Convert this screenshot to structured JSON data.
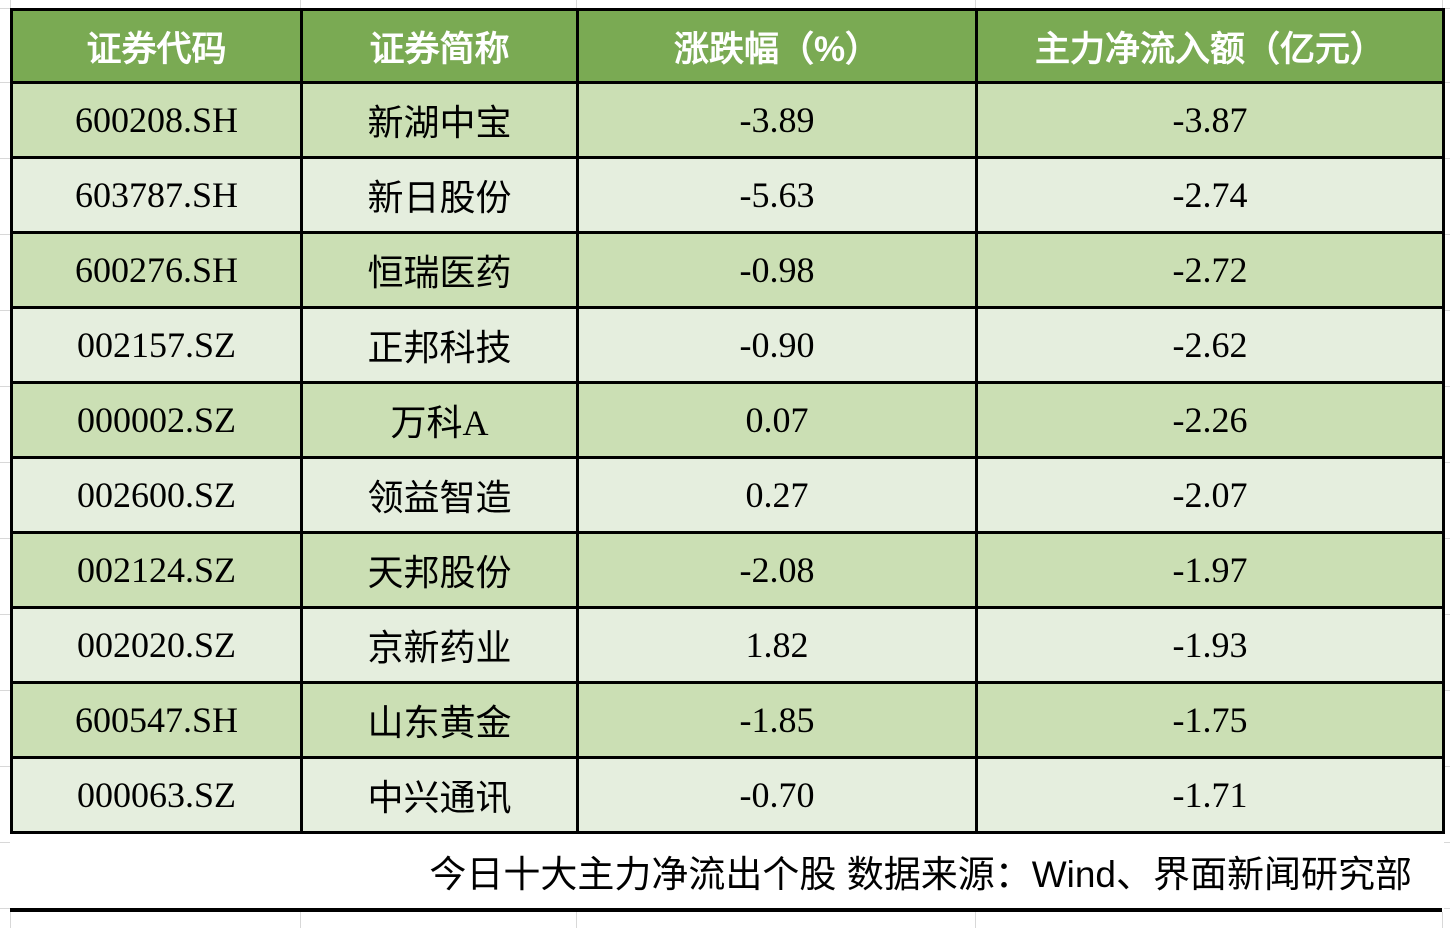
{
  "colors": {
    "header_bg": "#7aaa53",
    "header_text": "#ffffff",
    "row_odd_bg": "#cbdfb4",
    "row_even_bg": "#e5eede",
    "body_text": "#000000",
    "table_border": "#000000",
    "gridline": "#d8d8d8"
  },
  "caption": "今日十大主力净流出个股 数据来源：Wind、界面新闻研究部",
  "chart_data": {
    "type": "table",
    "title": "今日十大主力净流出个股",
    "source": "数据来源：Wind、界面新闻研究部",
    "columns": [
      {
        "label": "证券代码"
      },
      {
        "label": "证券简称"
      },
      {
        "label": "涨跌幅（%）"
      },
      {
        "label": "主力净流入额（亿元）"
      }
    ],
    "rows": [
      {
        "code": "600208.SH",
        "name": "新湖中宝",
        "change_pct": "-3.89",
        "main_net_inflow": "-3.87"
      },
      {
        "code": "603787.SH",
        "name": "新日股份",
        "change_pct": "-5.63",
        "main_net_inflow": "-2.74"
      },
      {
        "code": "600276.SH",
        "name": "恒瑞医药",
        "change_pct": "-0.98",
        "main_net_inflow": "-2.72"
      },
      {
        "code": "002157.SZ",
        "name": "正邦科技",
        "change_pct": "-0.90",
        "main_net_inflow": "-2.62"
      },
      {
        "code": "000002.SZ",
        "name": "万科A",
        "change_pct": "0.07",
        "main_net_inflow": "-2.26"
      },
      {
        "code": "002600.SZ",
        "name": "领益智造",
        "change_pct": "0.27",
        "main_net_inflow": "-2.07"
      },
      {
        "code": "002124.SZ",
        "name": "天邦股份",
        "change_pct": "-2.08",
        "main_net_inflow": "-1.97"
      },
      {
        "code": "002020.SZ",
        "name": "京新药业",
        "change_pct": "1.82",
        "main_net_inflow": "-1.93"
      },
      {
        "code": "600547.SH",
        "name": "山东黄金",
        "change_pct": "-1.85",
        "main_net_inflow": "-1.75"
      },
      {
        "code": "000063.SZ",
        "name": "中兴通讯",
        "change_pct": "-0.70",
        "main_net_inflow": "-1.71"
      }
    ]
  }
}
